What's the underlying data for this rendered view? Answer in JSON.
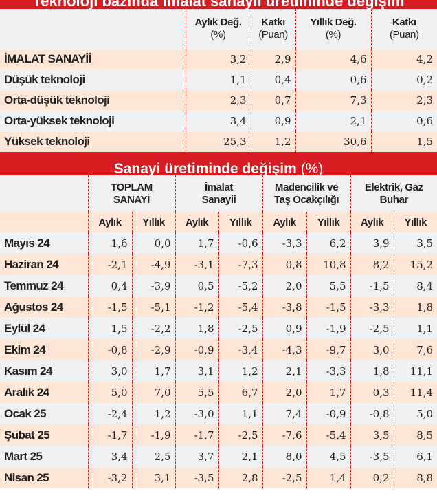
{
  "tech_table": {
    "title": "Teknoloji bazında imalat sanayii üretiminde değişim",
    "headers": [
      {
        "main": "Aylık Değ.",
        "unit": "(%)"
      },
      {
        "main": "Katkı",
        "unit": "(Puan)"
      },
      {
        "main": "Yıllık Değ.",
        "unit": "(%)"
      },
      {
        "main": "Katkı",
        "unit": "(Puan)"
      }
    ],
    "rows": [
      {
        "label": "İMALAT SANAYİİ",
        "values": [
          "3,2",
          "2,9",
          "4,6",
          "4,2"
        ]
      },
      {
        "label": "Düşük teknoloji",
        "values": [
          "1,1",
          "0,4",
          "0,6",
          "0,2"
        ]
      },
      {
        "label": "Orta-düşük teknoloji",
        "values": [
          "2,3",
          "0,7",
          "7,3",
          "2,3"
        ]
      },
      {
        "label": "Orta-yüksek teknoloji",
        "values": [
          "3,4",
          "0,9",
          "2,1",
          "0,6"
        ]
      },
      {
        "label": "Yüksek teknoloji",
        "values": [
          "25,3",
          "1,2",
          "30,6",
          "1,5"
        ]
      }
    ]
  },
  "industry_table": {
    "title": "Sanayi üretiminde değişim",
    "title_unit": "(%)",
    "groups": [
      {
        "line1": "TOPLAM",
        "line2": "SANAYİ"
      },
      {
        "line1": "İmalat",
        "line2": "Sanayii"
      },
      {
        "line1": "Madencilik ve",
        "line2": "Taş Ocakçılığı"
      },
      {
        "line1": "Elektrik, Gaz",
        "line2": "Buhar"
      }
    ],
    "sub_headers": [
      "Aylık",
      "Yıllık",
      "Aylık",
      "Yıllık",
      "Aylık",
      "Yıllık",
      "Aylık",
      "Yıllık"
    ],
    "rows": [
      {
        "label": "Mayıs 24",
        "values": [
          "1,6",
          "0,0",
          "1,7",
          "-0,6",
          "-3,3",
          "6,2",
          "3,9",
          "3,5"
        ]
      },
      {
        "label": "Haziran 24",
        "values": [
          "-2,1",
          "-4,9",
          "-3,1",
          "-7,3",
          "0,8",
          "10,8",
          "8,2",
          "15,2"
        ]
      },
      {
        "label": "Temmuz 24",
        "values": [
          "0,4",
          "-3,9",
          "0,5",
          "-5,2",
          "2,0",
          "5,5",
          "-1,5",
          "8,4"
        ]
      },
      {
        "label": "Ağustos 24",
        "values": [
          "-1,5",
          "-5,1",
          "-1,2",
          "-5,4",
          "-3,8",
          "-1,5",
          "-3,3",
          "1,8"
        ]
      },
      {
        "label": "Eylül 24",
        "values": [
          "1,5",
          "-2,2",
          "1,8",
          "-2,5",
          "0,9",
          "-1,9",
          "-2,5",
          "1,1"
        ]
      },
      {
        "label": "Ekim 24",
        "values": [
          "-0,8",
          "-2,9",
          "-0,9",
          "-3,4",
          "-4,3",
          "-9,7",
          "3,0",
          "7,6"
        ]
      },
      {
        "label": "Kasım 24",
        "values": [
          "3,0",
          "1,7",
          "3,1",
          "1,2",
          "2,1",
          "-3,3",
          "1,8",
          "11,1"
        ]
      },
      {
        "label": "Aralık 24",
        "values": [
          "5,0",
          "7,0",
          "5,5",
          "6,7",
          "2,0",
          "1,7",
          "0,3",
          "11,4"
        ]
      },
      {
        "label": "Ocak 25",
        "values": [
          "-2,4",
          "1,2",
          "-3,0",
          "1,1",
          "7,4",
          "-0,9",
          "-0,8",
          "5,0"
        ]
      },
      {
        "label": "Şubat 25",
        "values": [
          "-1,7",
          "-1,9",
          "-1,7",
          "-2,5",
          "-7,6",
          "-5,4",
          "3,5",
          "8,5"
        ]
      },
      {
        "label": "Mart 25",
        "values": [
          "3,4",
          "2,5",
          "3,7",
          "2,1",
          "8,0",
          "4,5",
          "-3,5",
          "6,1"
        ]
      },
      {
        "label": "Nisan 25",
        "values": [
          "-3,2",
          "3,1",
          "-3,5",
          "2,8",
          "-2,5",
          "1,4",
          "0,2",
          "8,8"
        ]
      }
    ]
  },
  "colors": {
    "accent": "#d81d22",
    "row_peach": "#fde6d6",
    "row_grey": "#eef0f2"
  }
}
